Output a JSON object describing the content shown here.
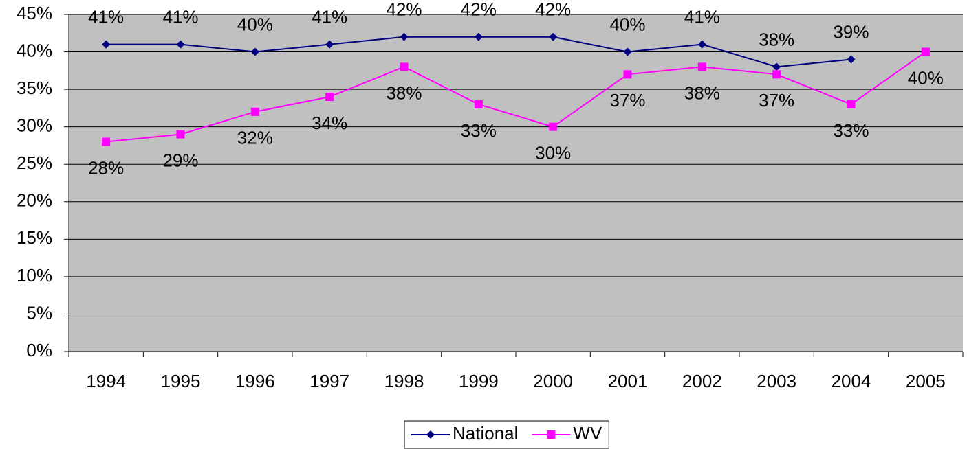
{
  "chart_data": {
    "type": "line",
    "categories": [
      "1994",
      "1995",
      "1996",
      "1997",
      "1998",
      "1999",
      "2000",
      "2001",
      "2002",
      "2003",
      "2004",
      "2005"
    ],
    "series": [
      {
        "name": "National",
        "color": "#000080",
        "marker": "diamond",
        "values": [
          41,
          41,
          40,
          41,
          42,
          42,
          42,
          40,
          41,
          38,
          39,
          null
        ],
        "value_labels": [
          "41%",
          "41%",
          "40%",
          "41%",
          "42%",
          "42%",
          "42%",
          "40%",
          "41%",
          "38%",
          "39%",
          null
        ]
      },
      {
        "name": "WV",
        "color": "#ff00ff",
        "marker": "square",
        "values": [
          28,
          29,
          32,
          34,
          38,
          33,
          30,
          37,
          38,
          37,
          33,
          40
        ],
        "value_labels": [
          "28%",
          "29%",
          "32%",
          "34%",
          "38%",
          "33%",
          "30%",
          "37%",
          "38%",
          "37%",
          "33%",
          "40%"
        ]
      }
    ],
    "ylim": [
      0,
      45
    ],
    "yticks": [
      {
        "value": 0,
        "label": "0%"
      },
      {
        "value": 5,
        "label": "5%"
      },
      {
        "value": 10,
        "label": "10%"
      },
      {
        "value": 15,
        "label": "15%"
      },
      {
        "value": 20,
        "label": "20%"
      },
      {
        "value": 25,
        "label": "25%"
      },
      {
        "value": 30,
        "label": "30%"
      },
      {
        "value": 35,
        "label": "35%"
      },
      {
        "value": 40,
        "label": "40%"
      },
      {
        "value": 45,
        "label": "45%"
      }
    ],
    "grid": true,
    "plot_background": "#c0c0c0",
    "legend": "bottom"
  }
}
